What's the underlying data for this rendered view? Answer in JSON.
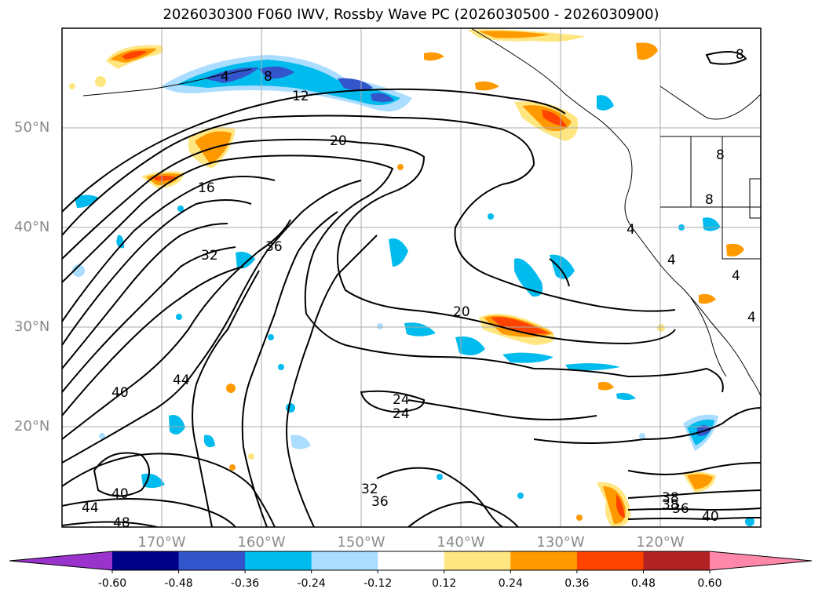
{
  "title": "2026030300 F060 IWV, Rossby Wave PC (2026030500 - 2026030900)",
  "lat_labels": [
    "50°N",
    "40°N",
    "30°N",
    "20°N"
  ],
  "lon_labels": [
    "170°W",
    "160°W",
    "150°W",
    "140°W",
    "130°W",
    "120°W"
  ],
  "contour_labels": [
    "8",
    "4",
    "12",
    "20",
    "16",
    "32",
    "36",
    "20",
    "40",
    "44",
    "24",
    "24",
    "32",
    "36",
    "40",
    "44",
    "48",
    "38",
    "38",
    "36",
    "40",
    "8",
    "8",
    "4",
    "4",
    "4",
    "4",
    "8"
  ],
  "colorbar": {
    "ticks": [
      "-0.60",
      "-0.48",
      "-0.36",
      "-0.24",
      "-0.12",
      "0.12",
      "0.24",
      "0.36",
      "0.48",
      "0.60"
    ],
    "colors": [
      "#9933cc",
      "#000088",
      "#3355cc",
      "#00bbee",
      "#aaddff",
      "#ffffff",
      "#ffe680",
      "#ff9900",
      "#ff4400",
      "#b22222",
      "#ff88aa"
    ]
  },
  "colors": {
    "contour": "#000000",
    "grid": "#aaaaaa",
    "coast": "#000000"
  }
}
